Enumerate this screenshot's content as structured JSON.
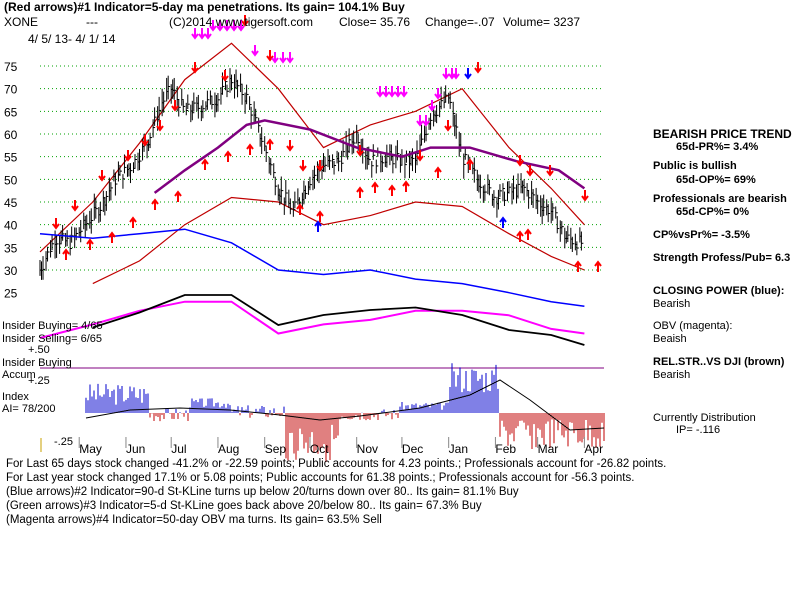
{
  "header": {
    "line1": "(Red arrows)#1 Indicator=5-day ma penetrations. Its gain= 104.1% Buy",
    "ticker": "XONE",
    "dashes": "---",
    "site": "(C)2014 www.tigersoft.com",
    "close": "Close= 35.76",
    "change": "Change=-.07",
    "volume": "Volume= 3237",
    "date_range": "4/ 5/ 13- 4/ 1/ 14"
  },
  "side": {
    "trend_title": "BEARISH PRICE TREND",
    "pr": "65d-PR%= 3.4%",
    "public": "Public is bullish",
    "op": "65d-OP%= 69%",
    "prof": "Professionals are bearish",
    "cp": "65d-CP%= 0%",
    "cpvs": "CP%vsPr%= -3.5%",
    "strength": "Strength Profess/Pub= 6.3",
    "cp_label": "CLOSING POWER (blue):",
    "cp_val": "Bearish",
    "obv_label": "OBV (magenta):",
    "obv_val": "Beaish",
    "rel_label": "REL.STR..VS DJI (brown)",
    "rel_val": "Bearish",
    "dist_label": "Currently Distribution",
    "dist_val": "IP= -.116"
  },
  "insider": {
    "buying": "Insider Buying= 4/65",
    "selling": "Insider Selling= 6/65",
    "p50": "+.50",
    "label1": "Insider Buying",
    "accum": "Accum",
    "p25": "+.25",
    "index": "Index",
    "ai": "AI= 78/200",
    "m25": "-.25"
  },
  "footer": {
    "l1": "For Last 65 days stock changed -41.2% or -22.59 points; Public accounts for  4.23 points.; Professionals account for -26.82 points.",
    "l2": "For Last year stock changed  17.1% or  5.08 points; Public accounts for  61.38 points.; Professionals account for -56.3 points.",
    "l3": "(Blue arrows)#2 Indicator=90-d St-KLine turns up below 20/turns down over 80.. Its gain= 81.1% Buy",
    "l4": "(Green arrows)#3 Indicator=5-d St-KLine goes back above 20/below 80.. Its gain= 67.3% Buy",
    "l5": "(Magenta arrows)#4 Indicator=50-day OBV ma turns. Its gain= 63.5% Sell"
  },
  "chart_data": {
    "type": "line",
    "title": "XONE",
    "x_ticks": [
      "May",
      "Jun",
      "Jul",
      "Aug",
      "Sep",
      "Oct",
      "Nov",
      "Dec",
      "Jan",
      "Feb",
      "Mar",
      "Apr"
    ],
    "y_ticks": [
      75,
      70,
      65,
      60,
      55,
      50,
      45,
      40,
      35,
      30,
      25
    ],
    "ylim": [
      23,
      78
    ],
    "grid": true,
    "price_close": [
      [
        "2013-04-05",
        30
      ],
      [
        "2013-04-15",
        37
      ],
      [
        "2013-04-25",
        36
      ],
      [
        "2013-05-05",
        40
      ],
      [
        "2013-05-15",
        44
      ],
      [
        "2013-05-25",
        50
      ],
      [
        "2013-06-05",
        53
      ],
      [
        "2013-06-15",
        58
      ],
      [
        "2013-06-25",
        67
      ],
      [
        "2013-07-01",
        70
      ],
      [
        "2013-07-10",
        65
      ],
      [
        "2013-07-20",
        66
      ],
      [
        "2013-08-01",
        68
      ],
      [
        "2013-08-10",
        72
      ],
      [
        "2013-08-20",
        68
      ],
      [
        "2013-09-01",
        57
      ],
      [
        "2013-09-10",
        48
      ],
      [
        "2013-09-20",
        43
      ],
      [
        "2013-10-01",
        50
      ],
      [
        "2013-10-10",
        53
      ],
      [
        "2013-10-20",
        54
      ],
      [
        "2013-11-01",
        60
      ],
      [
        "2013-11-10",
        54
      ],
      [
        "2013-11-20",
        55
      ],
      [
        "2013-12-01",
        54
      ],
      [
        "2013-12-10",
        54
      ],
      [
        "2013-12-20",
        64
      ],
      [
        "2014-01-01",
        68
      ],
      [
        "2014-01-10",
        55
      ],
      [
        "2014-01-20",
        50
      ],
      [
        "2014-02-01",
        46
      ],
      [
        "2014-02-10",
        47
      ],
      [
        "2014-02-20",
        48
      ],
      [
        "2014-03-01",
        45
      ],
      [
        "2014-03-10",
        43
      ],
      [
        "2014-03-20",
        37
      ],
      [
        "2014-04-01",
        35.76
      ]
    ],
    "ma_50d_purple": [
      [
        "2013-06-20",
        47
      ],
      [
        "2013-07-10",
        52
      ],
      [
        "2013-08-01",
        57
      ],
      [
        "2013-08-20",
        62
      ],
      [
        "2013-09-01",
        63
      ],
      [
        "2013-10-01",
        61
      ],
      [
        "2013-11-01",
        57
      ],
      [
        "2013-12-01",
        55
      ],
      [
        "2013-12-20",
        57
      ],
      [
        "2014-01-15",
        57
      ],
      [
        "2014-02-15",
        54
      ],
      [
        "2014-03-15",
        52
      ],
      [
        "2014-04-01",
        48
      ]
    ],
    "band_upper_red": [
      [
        "2013-04-05",
        34
      ],
      [
        "2013-05-10",
        45
      ],
      [
        "2013-06-10",
        58
      ],
      [
        "2013-07-10",
        72
      ],
      [
        "2013-08-10",
        80
      ],
      [
        "2013-09-10",
        70
      ],
      [
        "2013-10-10",
        57
      ],
      [
        "2013-11-10",
        62
      ],
      [
        "2013-12-10",
        65
      ],
      [
        "2014-01-10",
        70
      ],
      [
        "2014-02-10",
        57
      ],
      [
        "2014-03-10",
        48
      ],
      [
        "2014-04-01",
        40
      ]
    ],
    "band_lower_red": [
      [
        "2013-05-10",
        27
      ],
      [
        "2013-06-10",
        32
      ],
      [
        "2013-07-10",
        40
      ],
      [
        "2013-08-10",
        46
      ],
      [
        "2013-09-10",
        45
      ],
      [
        "2013-10-10",
        40
      ],
      [
        "2013-11-10",
        42
      ],
      [
        "2013-12-10",
        45
      ],
      [
        "2014-01-10",
        44
      ],
      [
        "2014-02-10",
        38
      ],
      [
        "2014-03-10",
        33
      ],
      [
        "2014-04-01",
        30
      ]
    ],
    "closing_power_blue": [
      [
        "2013-04-05",
        38
      ],
      [
        "2013-05-10",
        37
      ],
      [
        "2013-06-10",
        38
      ],
      [
        "2013-07-10",
        39
      ],
      [
        "2013-08-10",
        36
      ],
      [
        "2013-09-10",
        30
      ],
      [
        "2013-10-10",
        29
      ],
      [
        "2013-11-10",
        30
      ],
      [
        "2013-12-10",
        28
      ],
      [
        "2014-01-10",
        27
      ],
      [
        "2014-02-10",
        25
      ],
      [
        "2014-03-10",
        23
      ],
      [
        "2014-04-01",
        22
      ]
    ],
    "obv_magenta": [
      [
        "2013-04-05",
        15
      ],
      [
        "2013-05-10",
        18
      ],
      [
        "2013-06-10",
        21
      ],
      [
        "2013-07-10",
        23
      ],
      [
        "2013-08-10",
        23
      ],
      [
        "2013-09-10",
        16
      ],
      [
        "2013-10-10",
        18
      ],
      [
        "2013-11-10",
        19
      ],
      [
        "2013-12-10",
        21
      ],
      [
        "2014-01-10",
        21
      ],
      [
        "2014-02-10",
        20
      ],
      [
        "2014-03-10",
        17
      ],
      [
        "2014-04-01",
        16
      ]
    ],
    "rel_strength_black": [
      [
        "2013-05-10",
        9
      ],
      [
        "2013-06-10",
        15
      ],
      [
        "2013-07-10",
        22
      ],
      [
        "2013-08-10",
        22
      ],
      [
        "2013-09-10",
        10
      ],
      [
        "2013-10-10",
        14
      ],
      [
        "2013-11-10",
        16
      ],
      [
        "2013-12-10",
        17
      ],
      [
        "2014-01-10",
        14
      ],
      [
        "2014-02-10",
        8
      ],
      [
        "2014-03-10",
        6
      ],
      [
        "2014-04-01",
        2
      ]
    ]
  }
}
